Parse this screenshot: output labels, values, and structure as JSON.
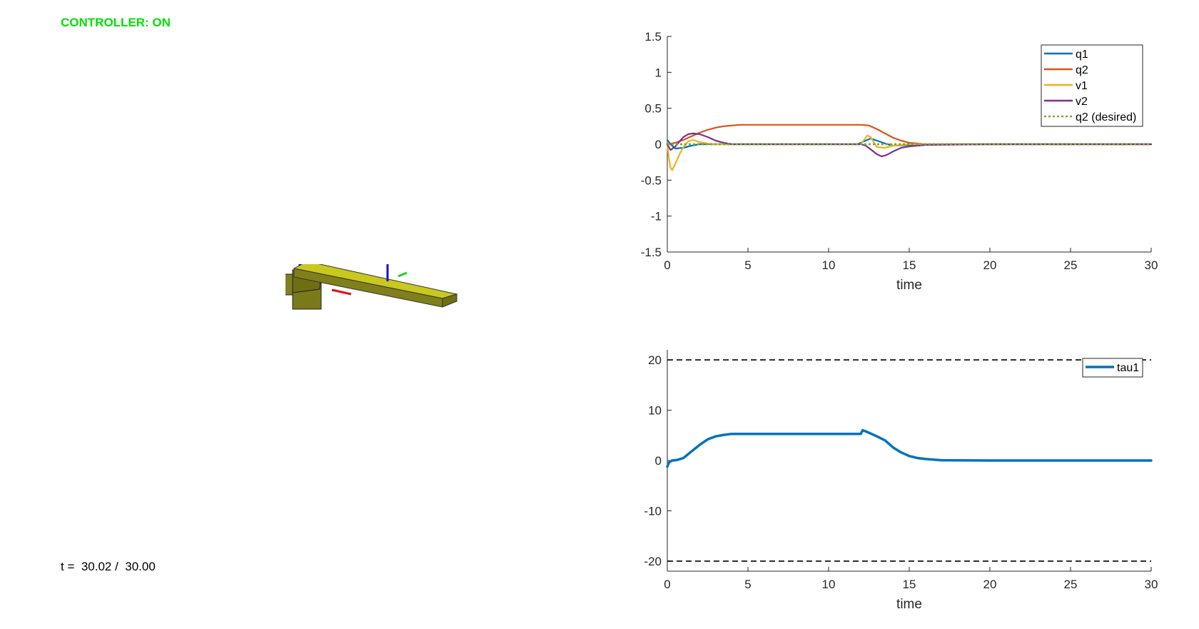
{
  "status": {
    "label": "CONTROLLER: ON",
    "color": "#00e000"
  },
  "timeline": {
    "text": "t =  30.02 /  30.00"
  },
  "scene": {
    "base_color": "#80801a",
    "top_color": "#c8c81e"
  },
  "chart_data": [
    {
      "type": "line",
      "title": "",
      "xlabel": "time",
      "ylabel": "",
      "xlim": [
        0,
        30
      ],
      "ylim": [
        -1.5,
        1.5
      ],
      "xticks": [
        "0",
        "5",
        "10",
        "15",
        "20",
        "25",
        "30"
      ],
      "yticks": [
        "-1.5",
        "-1",
        "-0.5",
        "0",
        "0.5",
        "1",
        "1.5"
      ],
      "legend": "top-right",
      "series": [
        {
          "name": "q1",
          "color": "#0072bd",
          "style": "solid",
          "x": [
            0,
            0.2,
            0.5,
            1,
            1.5,
            2,
            3,
            4,
            5,
            10,
            11.8,
            12.2,
            12.6,
            13.0,
            13.5,
            14,
            15,
            16,
            20,
            30
          ],
          "y": [
            0.06,
            0.0,
            -0.06,
            -0.05,
            -0.02,
            0.0,
            0.0,
            0.0,
            0.0,
            0.0,
            0.0,
            0.04,
            0.08,
            0.05,
            0.01,
            -0.02,
            -0.01,
            0.0,
            0.0,
            0.0
          ]
        },
        {
          "name": "q2",
          "color": "#d95319",
          "style": "solid",
          "x": [
            0,
            0.5,
            1,
            1.5,
            2,
            2.5,
            3,
            3.5,
            4,
            4.5,
            5,
            10,
            12,
            12.5,
            13,
            13.5,
            14,
            14.5,
            15,
            15.5,
            16,
            17,
            20,
            30
          ],
          "y": [
            0.0,
            0.02,
            0.06,
            0.11,
            0.16,
            0.2,
            0.23,
            0.25,
            0.26,
            0.27,
            0.27,
            0.27,
            0.27,
            0.26,
            0.21,
            0.15,
            0.09,
            0.05,
            0.02,
            0.01,
            0.0,
            0.0,
            0.0,
            0.0
          ]
        },
        {
          "name": "v1",
          "color": "#edb120",
          "style": "solid",
          "x": [
            0,
            0.1,
            0.2,
            0.3,
            0.5,
            0.8,
            1.0,
            1.3,
            1.6,
            2.0,
            2.5,
            3.0,
            4,
            10,
            12,
            12.2,
            12.4,
            12.6,
            12.8,
            13.0,
            13.5,
            14,
            15,
            20,
            30
          ],
          "y": [
            0.0,
            -0.2,
            -0.33,
            -0.36,
            -0.27,
            -0.12,
            -0.04,
            0.04,
            0.06,
            0.03,
            0.01,
            0.0,
            0.0,
            0.0,
            0.0,
            0.06,
            0.12,
            0.1,
            0.03,
            -0.04,
            -0.05,
            -0.02,
            0.0,
            0.0,
            0.0
          ]
        },
        {
          "name": "v2",
          "color": "#7e2f8e",
          "style": "solid",
          "x": [
            0,
            0.2,
            0.5,
            0.8,
            1.0,
            1.3,
            1.6,
            2.0,
            2.5,
            3.0,
            3.5,
            4,
            5,
            10,
            12,
            12.3,
            12.6,
            13.0,
            13.3,
            13.6,
            14,
            14.5,
            15,
            16,
            20,
            30
          ],
          "y": [
            0.0,
            -0.08,
            -0.03,
            0.05,
            0.1,
            0.14,
            0.15,
            0.14,
            0.1,
            0.05,
            0.02,
            0.0,
            0.0,
            0.0,
            0.0,
            -0.02,
            -0.07,
            -0.14,
            -0.17,
            -0.15,
            -0.1,
            -0.05,
            -0.03,
            -0.01,
            0.0,
            0.0
          ]
        },
        {
          "name": "q2 (desired)",
          "color": "#77ac30",
          "style": "dotted",
          "x": [
            0,
            30
          ],
          "y": [
            0.0,
            0.0
          ]
        }
      ]
    },
    {
      "type": "line",
      "title": "",
      "xlabel": "time",
      "ylabel": "",
      "xlim": [
        0,
        30
      ],
      "ylim": [
        -22,
        22
      ],
      "xticks": [
        "0",
        "5",
        "10",
        "15",
        "20",
        "25",
        "30"
      ],
      "yticks": [
        "-20",
        "-10",
        "0",
        "10",
        "20"
      ],
      "legend": "top-right",
      "limits": [
        20,
        -20
      ],
      "series": [
        {
          "name": "tau1",
          "color": "#0072bd",
          "style": "solid",
          "x": [
            0,
            0.1,
            0.3,
            0.6,
            1.0,
            1.5,
            2.0,
            2.5,
            3.0,
            3.5,
            4.0,
            4.5,
            5.0,
            10,
            12.0,
            12.1,
            12.3,
            13.0,
            13.5,
            14.0,
            14.5,
            15.0,
            15.5,
            16.0,
            17.0,
            20,
            30
          ],
          "y": [
            -1.2,
            -0.4,
            0.0,
            0.1,
            0.5,
            1.8,
            3.1,
            4.2,
            4.8,
            5.1,
            5.3,
            5.3,
            5.3,
            5.3,
            5.3,
            6.0,
            5.8,
            4.8,
            4.0,
            2.6,
            1.6,
            0.9,
            0.5,
            0.3,
            0.05,
            0.0,
            0.0
          ]
        }
      ]
    }
  ]
}
